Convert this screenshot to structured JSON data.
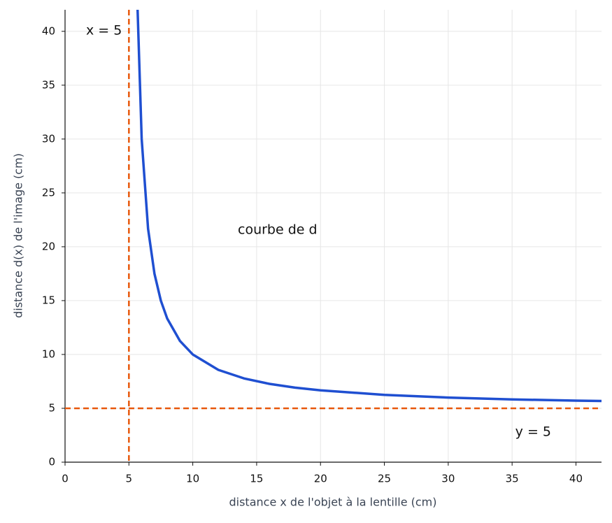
{
  "chart_data": {
    "type": "line",
    "xlabel": "distance x de l'objet à la lentille (cm)",
    "ylabel": "distance d(x) de l'image (cm)",
    "xlim": [
      0,
      42
    ],
    "xticks": [
      0,
      5,
      10,
      15,
      20,
      25,
      30,
      35,
      40
    ],
    "ylim": [
      0,
      42
    ],
    "yticks": [
      0,
      5,
      10,
      15,
      20,
      25,
      30,
      35,
      40
    ],
    "grid": true,
    "series": [
      {
        "name": "courbe de d",
        "color": "#1f4fd1",
        "x": [
          5.68,
          6,
          6.5,
          7,
          7.5,
          8,
          9,
          10,
          12,
          14,
          16,
          18,
          20,
          25,
          30,
          35,
          40,
          42
        ],
        "values": [
          42,
          30,
          21.67,
          17.5,
          15,
          13.33,
          11.25,
          10,
          8.57,
          7.78,
          7.27,
          6.92,
          6.67,
          6.25,
          6,
          5.83,
          5.71,
          5.68
        ]
      }
    ],
    "vlines": [
      {
        "x": 5,
        "label": "x = 5",
        "color": "#e8580c"
      }
    ],
    "hlines": [
      {
        "y": 5,
        "label": "y = 5",
        "color": "#e8580c"
      }
    ]
  }
}
